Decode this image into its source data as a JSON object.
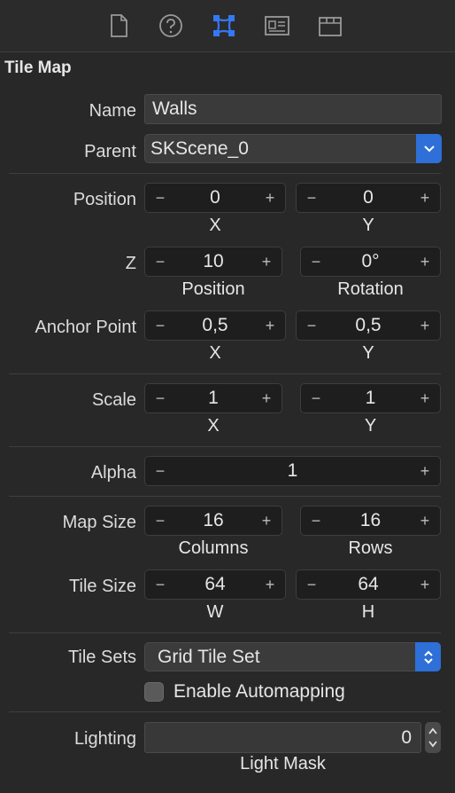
{
  "toolbar": {
    "icons": [
      "file-inspector-icon",
      "help-icon",
      "node-inspector-icon",
      "identity-icon",
      "attributes-icon"
    ],
    "accent": "#3478f6"
  },
  "section": {
    "title": "Tile Map"
  },
  "name": {
    "label": "Name",
    "value": "Walls"
  },
  "parent": {
    "label": "Parent",
    "value": "SKScene_0"
  },
  "position": {
    "label": "Position",
    "x": {
      "value": "0",
      "caption": "X"
    },
    "y": {
      "value": "0",
      "caption": "Y"
    }
  },
  "z": {
    "label": "Z",
    "position": {
      "value": "10",
      "caption": "Position"
    },
    "rotation": {
      "value": "0°",
      "caption": "Rotation"
    }
  },
  "anchor": {
    "label": "Anchor Point",
    "x": {
      "value": "0,5",
      "caption": "X"
    },
    "y": {
      "value": "0,5",
      "caption": "Y"
    }
  },
  "scale": {
    "label": "Scale",
    "x": {
      "value": "1",
      "caption": "X"
    },
    "y": {
      "value": "1",
      "caption": "Y"
    }
  },
  "alpha": {
    "label": "Alpha",
    "value": "1"
  },
  "map_size": {
    "label": "Map Size",
    "columns": {
      "value": "16",
      "caption": "Columns"
    },
    "rows": {
      "value": "16",
      "caption": "Rows"
    }
  },
  "tile_size": {
    "label": "Tile Size",
    "w": {
      "value": "64",
      "caption": "W"
    },
    "h": {
      "value": "64",
      "caption": "H"
    }
  },
  "tile_sets": {
    "label": "Tile Sets",
    "value": "Grid Tile Set"
  },
  "automapping": {
    "label": "Enable Automapping",
    "checked": false
  },
  "lighting": {
    "label": "Lighting",
    "value": "0",
    "caption": "Light Mask"
  },
  "stepper": {
    "minus": "−",
    "plus": "+"
  }
}
